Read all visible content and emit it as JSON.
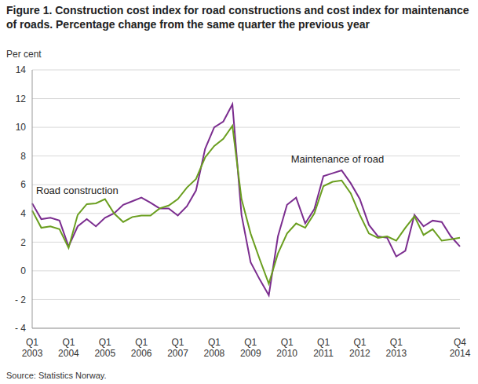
{
  "chart_data": {
    "type": "line",
    "title": "Figure 1. Construction cost index for road constructions and cost index for maintenance of roads. Percentage change from the same quarter the previous year",
    "y_label": "Per cent",
    "source": "Source: Statistics Norway.",
    "categories": [
      "Q1 2003",
      null,
      null,
      null,
      "Q1 2004",
      null,
      null,
      null,
      "Q1 2005",
      null,
      null,
      null,
      "Q1 2006",
      null,
      null,
      null,
      "Q1 2007",
      null,
      null,
      null,
      "Q1 2008",
      null,
      null,
      null,
      "Q1 2009",
      null,
      null,
      null,
      "Q1 2010",
      null,
      null,
      null,
      "Q1 2011",
      null,
      null,
      null,
      "Q1 2012",
      null,
      null,
      null,
      "Q1 2013",
      null,
      null,
      null,
      null,
      null,
      null,
      "Q4 2014"
    ],
    "series": [
      {
        "name": "Road construction",
        "color": "#7b2d8f",
        "values": [
          4.7,
          3.6,
          3.7,
          3.5,
          1.7,
          3.1,
          3.6,
          3.1,
          3.7,
          4.0,
          4.6,
          4.85,
          5.1,
          4.75,
          4.35,
          4.35,
          3.85,
          4.5,
          5.6,
          8.5,
          10.0,
          10.4,
          11.6,
          3.9,
          0.6,
          -0.6,
          -1.7,
          2.4,
          4.6,
          5.1,
          3.3,
          4.3,
          6.6,
          6.8,
          7.0,
          6.1,
          5.0,
          3.2,
          2.4,
          2.3,
          1.0,
          1.4,
          3.9,
          3.1,
          3.5,
          3.4,
          2.4,
          1.7
        ]
      },
      {
        "name": "Maintenance of road",
        "color": "#6a9e1f",
        "values": [
          4.2,
          3.0,
          3.1,
          2.9,
          1.6,
          3.9,
          4.65,
          4.7,
          5.0,
          4.0,
          3.4,
          3.75,
          3.85,
          3.85,
          4.35,
          4.55,
          5.0,
          5.8,
          6.4,
          7.9,
          8.7,
          9.2,
          10.1,
          5.0,
          2.6,
          0.8,
          -0.9,
          1.2,
          2.6,
          3.3,
          3.0,
          4.0,
          5.9,
          6.2,
          6.3,
          5.4,
          3.9,
          2.6,
          2.3,
          2.4,
          2.1,
          3.0,
          3.8,
          2.5,
          2.9,
          2.1,
          2.2,
          2.3
        ]
      }
    ],
    "ylim": [
      -4,
      14
    ],
    "yticks": [
      {
        "value": -4,
        "label": "- 4"
      },
      {
        "value": -2,
        "label": "- 2"
      },
      0,
      2,
      4,
      6,
      8,
      10,
      12,
      14
    ],
    "grid": true
  }
}
